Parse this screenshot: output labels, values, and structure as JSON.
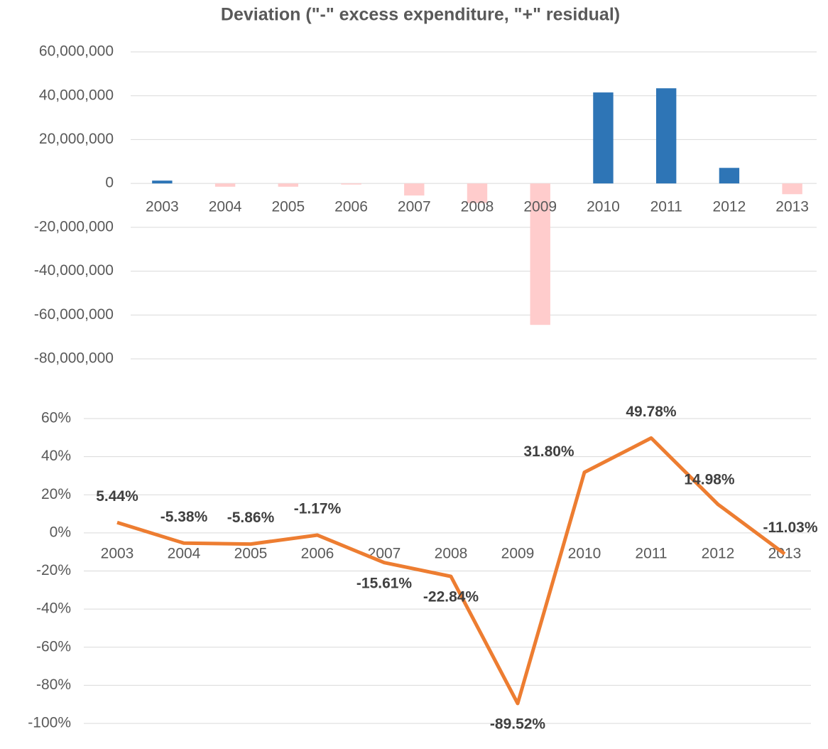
{
  "chart_data": [
    {
      "type": "bar",
      "title": "Deviation (\"-\" excess expenditure, \"+\" residual)",
      "categories": [
        "2003",
        "2004",
        "2005",
        "2006",
        "2007",
        "2008",
        "2009",
        "2010",
        "2011",
        "2012",
        "2013"
      ],
      "values": [
        1300000,
        -1500000,
        -1500000,
        -500000,
        -5500000,
        -9000000,
        -64500000,
        41500000,
        43400000,
        7100000,
        -4900000
      ],
      "color": "#2e75b6",
      "negative_color": "#ffcccc",
      "ylim": [
        -80000000,
        60000000
      ],
      "yticks": [
        {
          "value": -80000000,
          "label": "-80,000,000"
        },
        {
          "value": -60000000,
          "label": "-60,000,000"
        },
        {
          "value": -40000000,
          "label": "-40,000,000"
        },
        {
          "value": -20000000,
          "label": "-20,000,000"
        },
        0,
        {
          "value": 20000000,
          "label": "20,000,000"
        },
        {
          "value": 40000000,
          "label": "40,000,000"
        },
        {
          "value": 60000000,
          "label": "60,000,000"
        }
      ],
      "grid": true
    },
    {
      "type": "line",
      "categories": [
        "2003",
        "2004",
        "2005",
        "2006",
        "2007",
        "2008",
        "2009",
        "2010",
        "2011",
        "2012",
        "2013"
      ],
      "values": [
        5.44,
        -5.38,
        -5.86,
        -1.17,
        -15.61,
        -22.84,
        -89.52,
        31.8,
        49.78,
        14.98,
        -11.03
      ],
      "value_labels": [
        "5.44%",
        "-5.38%",
        "-5.86%",
        "-1.17%",
        "-15.61%",
        "-22.84%",
        "-89.52%",
        "31.80%",
        "49.78%",
        "14.98%",
        "-11.03%"
      ],
      "color": "#ed7d31",
      "ylim": [
        -100,
        60
      ],
      "yticks": [
        {
          "value": -100,
          "label": "-100%"
        },
        {
          "value": -80,
          "label": "-80%"
        },
        {
          "value": -60,
          "label": "-60%"
        },
        {
          "value": -40,
          "label": "-40%"
        },
        {
          "value": -20,
          "label": "-20%"
        },
        {
          "value": 0,
          "label": "0%"
        },
        {
          "value": 20,
          "label": "20%"
        },
        {
          "value": 40,
          "label": "40%"
        },
        {
          "value": 60,
          "label": "60%"
        }
      ],
      "grid": true
    }
  ]
}
